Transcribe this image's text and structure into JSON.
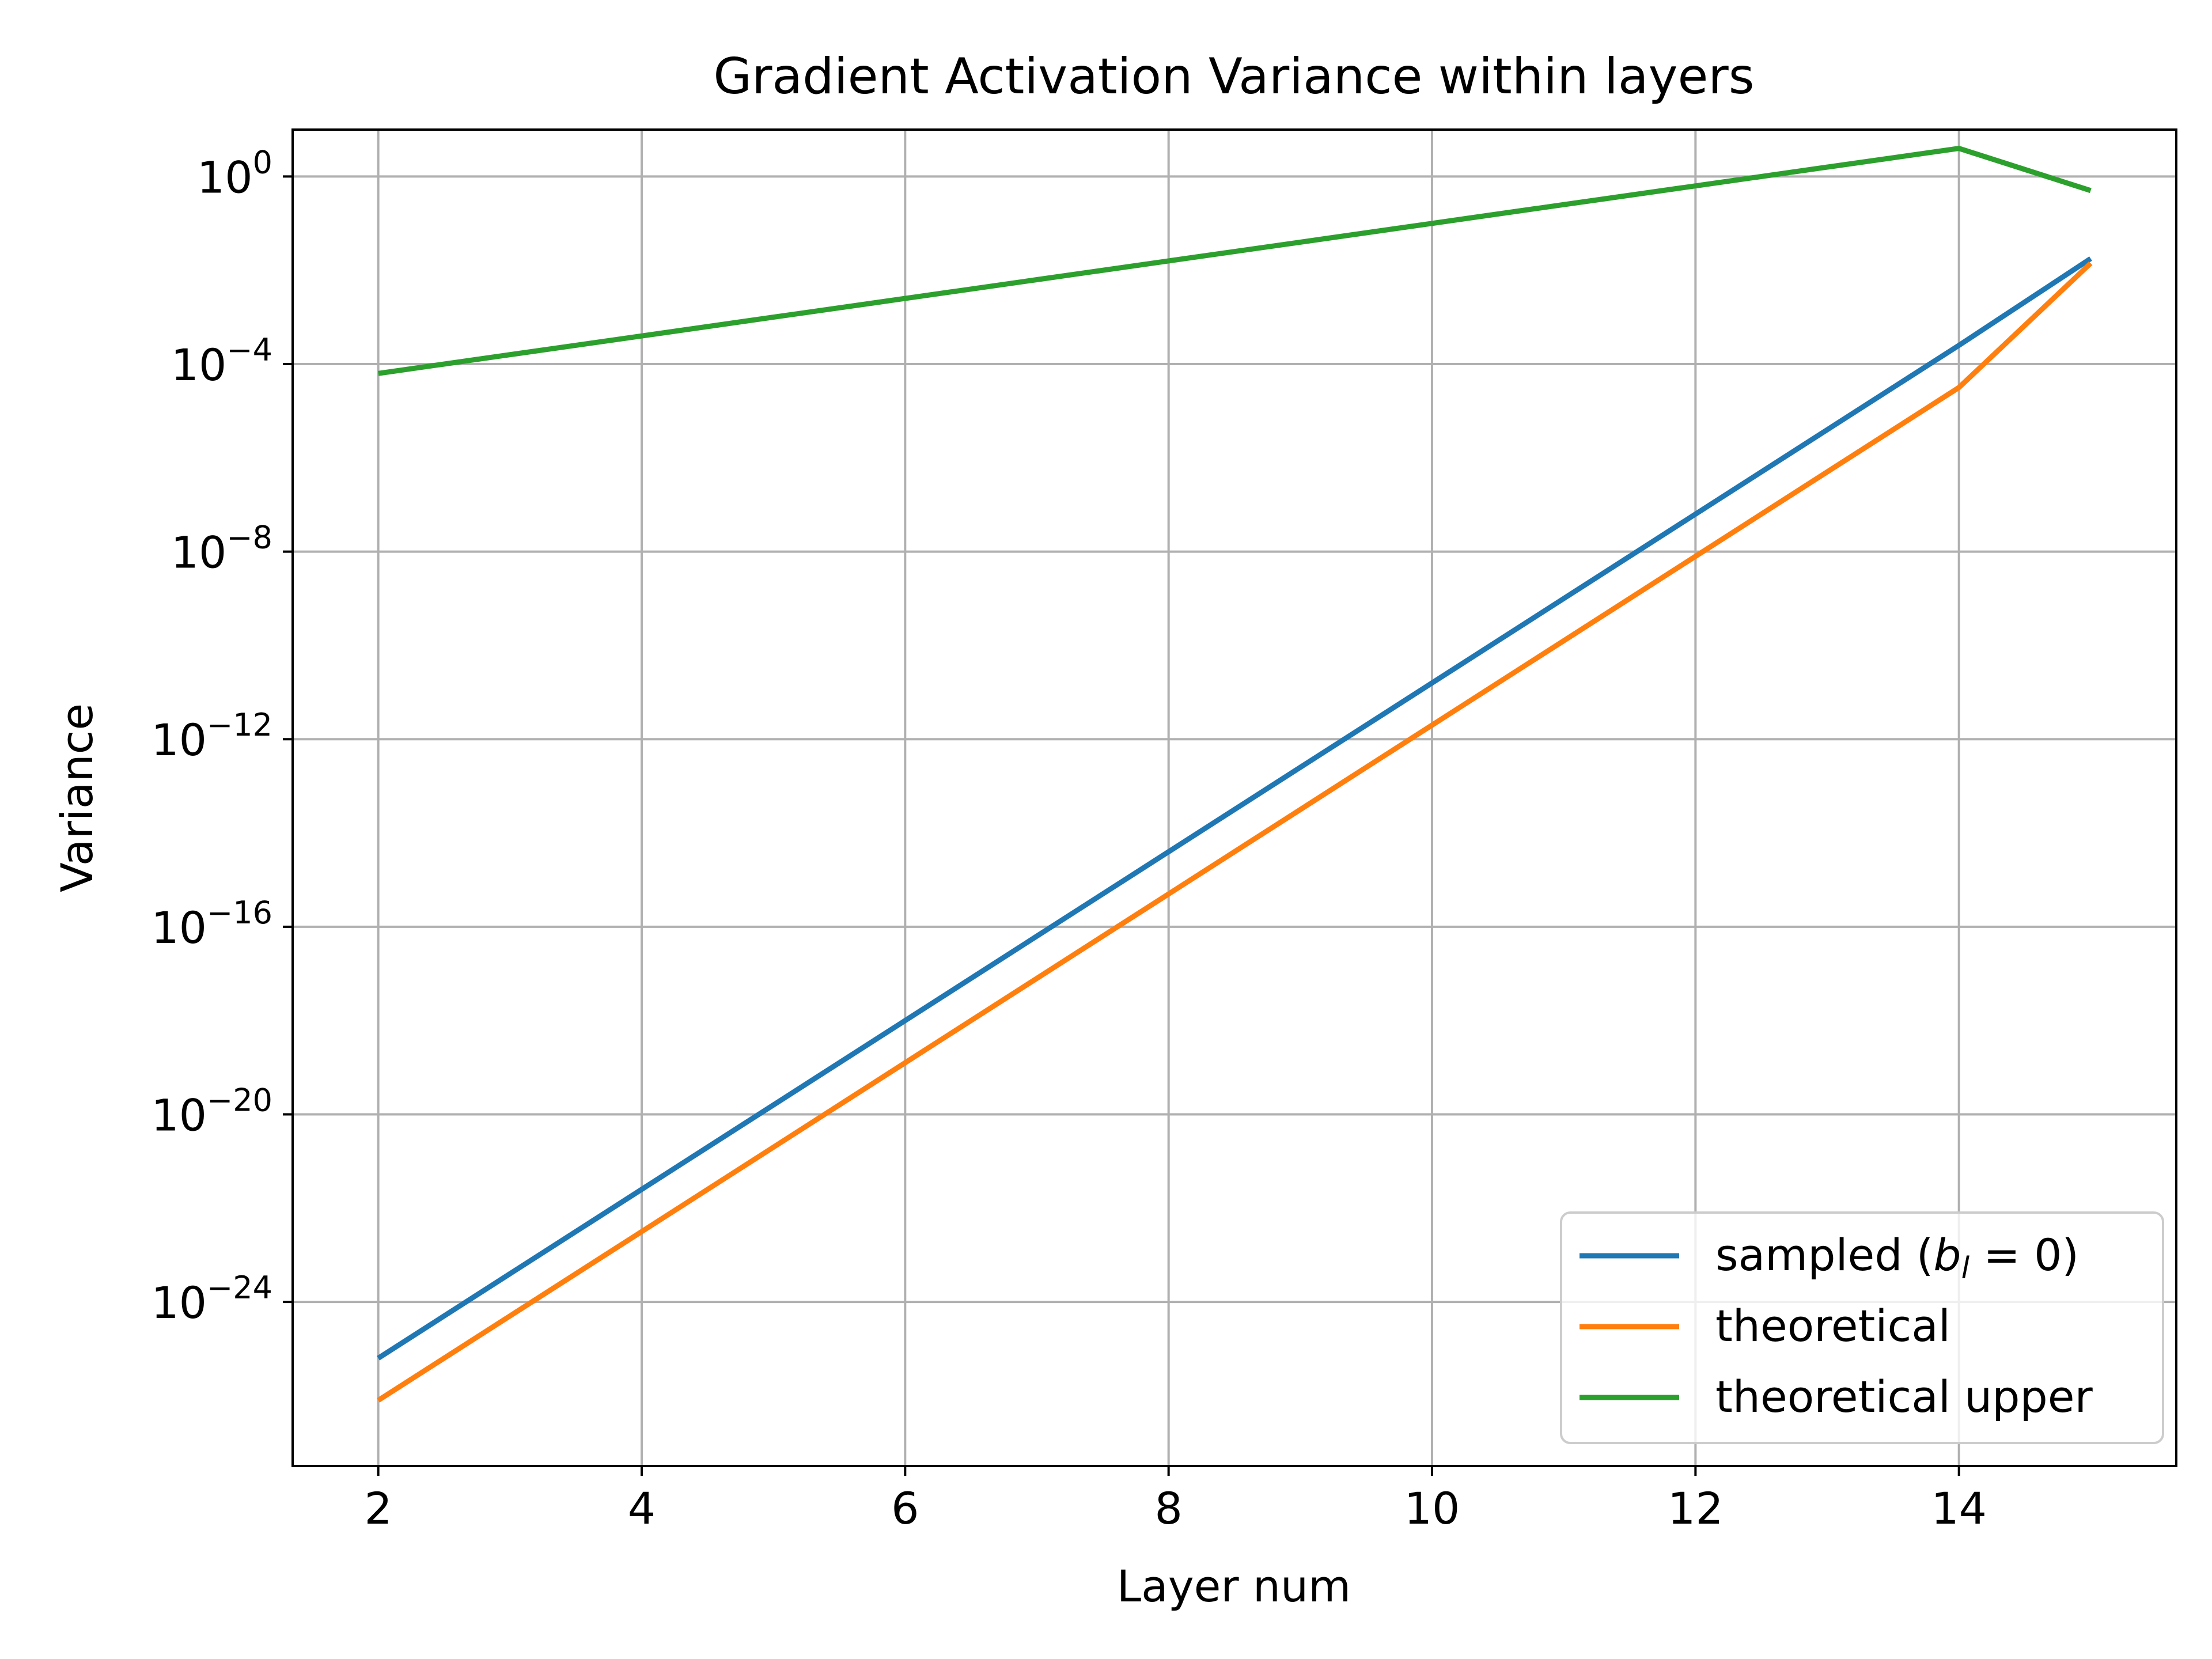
{
  "chart_data": {
    "type": "line",
    "title": "Gradient Activation Variance within layers",
    "xlabel": "Layer num",
    "ylabel": "Variance",
    "x": [
      2,
      3,
      4,
      5,
      6,
      7,
      8,
      9,
      10,
      11,
      12,
      13,
      14,
      15
    ],
    "xlim": [
      1.35,
      15.65
    ],
    "ylim_log10": [
      -27.5,
      1.0
    ],
    "yscale": "log",
    "grid": true,
    "x_ticks": [
      "2",
      "4",
      "6",
      "8",
      "10",
      "12",
      "14"
    ],
    "x_tick_values": [
      2,
      4,
      6,
      8,
      10,
      12,
      14
    ],
    "y_tick_exponents": [
      0,
      -4,
      -8,
      -12,
      -16,
      -20,
      -24
    ],
    "y_tick_base": "10",
    "y_tick_exponent_labels": [
      "0",
      "−4",
      "−8",
      "−12",
      "−16",
      "−20",
      "−24"
    ],
    "legend_position": "lower right",
    "series": [
      {
        "name": "sampled ",
        "name_math_main": "b",
        "name_math_sub": "l",
        "name_math_rest": " = 0)",
        "color": "#1f77b4",
        "log10_values": [
          -25.2,
          -23.4,
          -21.6,
          -19.8,
          -18.0,
          -16.2,
          -14.4,
          -12.6,
          -10.8,
          -9.0,
          -7.2,
          -5.4,
          -3.6,
          -1.75
        ]
      },
      {
        "name": "theoretical",
        "color": "#ff7f0e",
        "log10_values": [
          -26.1,
          -24.3,
          -22.5,
          -20.7,
          -18.9,
          -17.1,
          -15.3,
          -13.5,
          -11.7,
          -9.9,
          -8.1,
          -6.3,
          -4.5,
          -1.85
        ]
      },
      {
        "name": "theoretical upper",
        "color": "#2ca02c",
        "log10_values": [
          -4.2,
          -3.8,
          -3.4,
          -3.0,
          -2.6,
          -2.2,
          -1.8,
          -1.4,
          -1.0,
          -0.6,
          -0.2,
          0.2,
          0.6,
          -0.3
        ]
      }
    ]
  }
}
